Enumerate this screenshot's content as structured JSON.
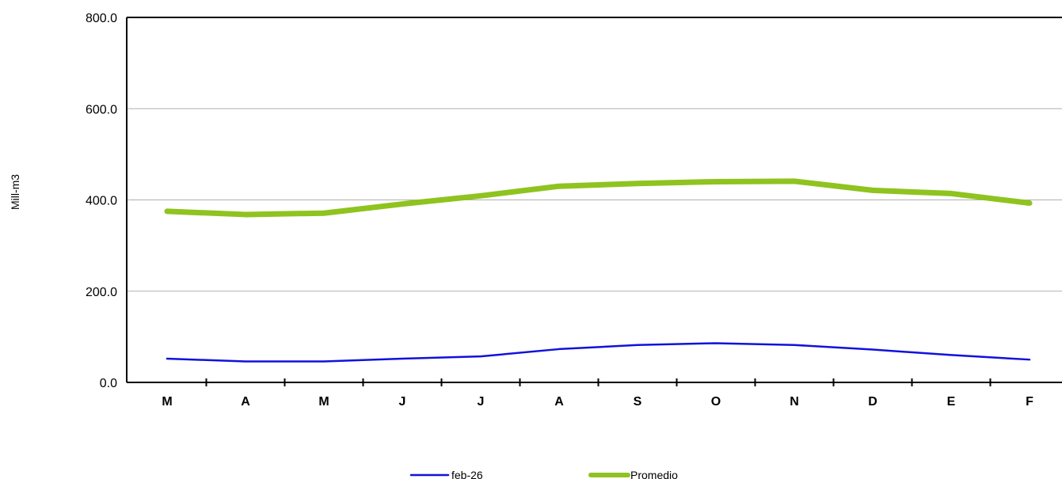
{
  "chart_data": {
    "type": "line",
    "categories": [
      "M",
      "A",
      "M",
      "J",
      "J",
      "A",
      "S",
      "O",
      "N",
      "D",
      "E",
      "F"
    ],
    "series": [
      {
        "name": "feb-26",
        "color": "#1111dd",
        "values": [
          52,
          46,
          46,
          52,
          57,
          73,
          82,
          86,
          82,
          72,
          60,
          50
        ]
      },
      {
        "name": "Promedio",
        "color": "#8fc31f",
        "values": [
          375,
          368,
          371,
          391,
          409,
          430,
          436,
          440,
          441,
          421,
          414,
          393
        ]
      }
    ],
    "ylabel": "Mill-m3",
    "xlabel": "",
    "ylim": [
      0,
      800
    ],
    "yticks": [
      "0.0",
      "200.0",
      "400.0",
      "600.0",
      "800.0"
    ],
    "grid": true,
    "legend_position": "bottom-center"
  }
}
